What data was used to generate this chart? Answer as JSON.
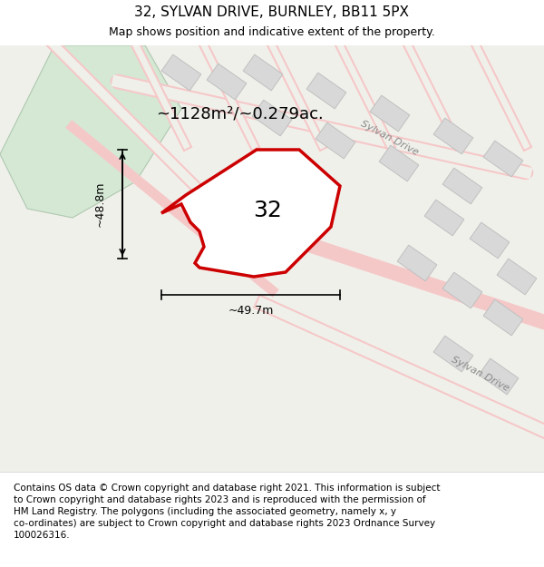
{
  "title_line1": "32, SYLVAN DRIVE, BURNLEY, BB11 5PX",
  "title_line2": "Map shows position and indicative extent of the property.",
  "area_text": "~1128m²/~0.279ac.",
  "number_label": "32",
  "width_label": "~49.7m",
  "height_label": "~48.8m",
  "footer_text": "Contains OS data © Crown copyright and database right 2021. This information is subject to Crown copyright and database rights 2023 and is reproduced with the permission of HM Land Registry. The polygons (including the associated geometry, namely x, y co-ordinates) are subject to Crown copyright and database rights 2023 Ordnance Survey 100026316.",
  "bg_color": "#f5f5f0",
  "map_bg_color": "#f0f0eb",
  "road_color": "#f5c8c8",
  "building_color": "#d8d8d8",
  "building_edge_color": "#c0c0c0",
  "property_color": "#cc0000",
  "green_area_color": "#d4e8d4",
  "sylvan_drive_label1": "Sylvan Drive",
  "sylvan_drive_label2": "Sylvan Drive",
  "title_fontsize": 11,
  "subtitle_fontsize": 9,
  "footer_fontsize": 7.5
}
